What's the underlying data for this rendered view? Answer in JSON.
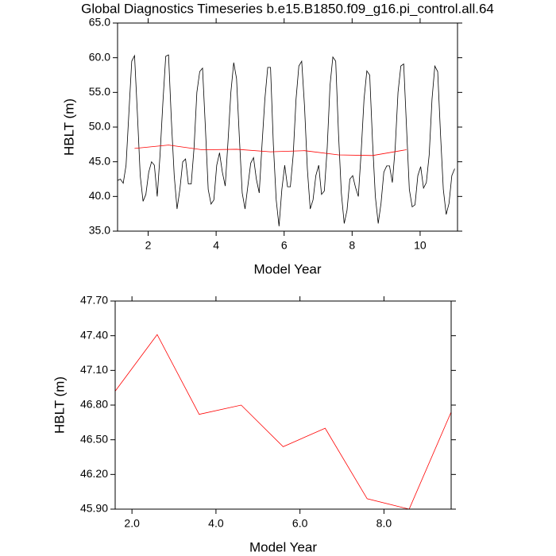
{
  "chart_data": [
    {
      "type": "line",
      "title": "Global Diagnostics Timeseries b.e15.B1850.f09_g16.pi_control.all.64",
      "x_label": "Model Year",
      "y_label": "HBLT (m)",
      "xlim": [
        1.1,
        11.1
      ],
      "xticks": [
        2,
        4,
        6,
        8,
        10
      ],
      "ylim": [
        35,
        65
      ],
      "yticks": [
        {
          "value": 35,
          "label": "35.0"
        },
        {
          "value": 40,
          "label": "40.0"
        },
        {
          "value": 45,
          "label": "45.0"
        },
        {
          "value": 50,
          "label": "50.0"
        },
        {
          "value": 55,
          "label": "55.0"
        },
        {
          "value": 60,
          "label": "60.0"
        },
        {
          "value": 65,
          "label": "65.0"
        }
      ],
      "series": [
        {
          "color": "#000000",
          "x": [
            1.1,
            1.183,
            1.267,
            1.35,
            1.433,
            1.517,
            1.6,
            1.683,
            1.767,
            1.85,
            1.933,
            2.017,
            2.1,
            2.183,
            2.267,
            2.35,
            2.433,
            2.517,
            2.6,
            2.683,
            2.767,
            2.85,
            2.933,
            3.017,
            3.1,
            3.183,
            3.267,
            3.35,
            3.433,
            3.517,
            3.6,
            3.683,
            3.767,
            3.85,
            3.933,
            4.017,
            4.1,
            4.183,
            4.267,
            4.35,
            4.433,
            4.517,
            4.6,
            4.683,
            4.767,
            4.85,
            4.933,
            5.017,
            5.1,
            5.183,
            5.267,
            5.35,
            5.433,
            5.517,
            5.6,
            5.683,
            5.767,
            5.85,
            5.933,
            6.017,
            6.1,
            6.183,
            6.267,
            6.35,
            6.433,
            6.517,
            6.6,
            6.683,
            6.767,
            6.85,
            6.933,
            7.017,
            7.1,
            7.183,
            7.267,
            7.35,
            7.433,
            7.517,
            7.6,
            7.683,
            7.767,
            7.85,
            7.933,
            8.017,
            8.1,
            8.183,
            8.267,
            8.35,
            8.433,
            8.517,
            8.6,
            8.683,
            8.767,
            8.85,
            8.933,
            9.017,
            9.1,
            9.183,
            9.267,
            9.35,
            9.433,
            9.517,
            9.6,
            9.683,
            9.767,
            9.85,
            9.933,
            10.017,
            10.1,
            10.183,
            10.267,
            10.35,
            10.433,
            10.517,
            10.6,
            10.683,
            10.767,
            10.85,
            10.933,
            11.017
          ],
          "values": [
            42.3,
            42.5,
            41.9,
            44.5,
            52.0,
            59.5,
            60.3,
            52.0,
            43.0,
            39.3,
            40.3,
            43.5,
            45.0,
            44.5,
            40.0,
            46.0,
            53.5,
            60.2,
            60.4,
            51.0,
            43.0,
            38.2,
            41.0,
            45.0,
            45.4,
            41.8,
            41.8,
            47.0,
            55.0,
            58.0,
            58.5,
            50.0,
            41.0,
            38.9,
            39.5,
            44.5,
            46.3,
            43.5,
            41.5,
            48.0,
            55.0,
            59.3,
            57.0,
            48.5,
            40.5,
            38.2,
            41.5,
            44.8,
            45.6,
            42.5,
            40.5,
            47.5,
            54.0,
            58.6,
            58.6,
            47.5,
            39.5,
            35.7,
            41.0,
            44.5,
            41.4,
            41.4,
            46.0,
            54.0,
            58.8,
            59.5,
            53.0,
            44.0,
            38.2,
            39.5,
            43.0,
            44.5,
            40.3,
            40.8,
            47.0,
            56.0,
            60.1,
            59.5,
            49.0,
            40.5,
            36.1,
            38.0,
            42.5,
            43.0,
            41.3,
            40.0,
            46.5,
            54.0,
            58.1,
            57.5,
            48.0,
            40.0,
            36.1,
            39.0,
            43.5,
            44.4,
            44.4,
            42.0,
            47.0,
            55.0,
            58.8,
            59.1,
            50.0,
            41.0,
            38.5,
            38.8,
            43.0,
            44.3,
            41.2,
            42.0,
            46.0,
            54.0,
            58.8,
            58.0,
            49.0,
            41.0,
            37.4,
            39.0,
            43.0,
            44.0
          ]
        },
        {
          "color": "#ff0000",
          "x": [
            1.6,
            2.6,
            3.6,
            4.6,
            5.6,
            6.6,
            7.6,
            8.6,
            9.6
          ],
          "values": [
            46.92,
            47.41,
            46.72,
            46.8,
            46.44,
            46.6,
            45.99,
            45.9,
            46.74
          ]
        }
      ]
    },
    {
      "type": "line",
      "x_label": "Model Year",
      "y_label": "HBLT (m)",
      "xlim": [
        1.6,
        9.6
      ],
      "xticks": [
        {
          "value": 2,
          "label": "2.0"
        },
        {
          "value": 4,
          "label": "4.0"
        },
        {
          "value": 6,
          "label": "6.0"
        },
        {
          "value": 8,
          "label": "8.0"
        }
      ],
      "ylim": [
        45.9,
        47.7
      ],
      "yticks": [
        {
          "value": 45.9,
          "label": "45.90"
        },
        {
          "value": 46.2,
          "label": "46.20"
        },
        {
          "value": 46.5,
          "label": "46.50"
        },
        {
          "value": 46.8,
          "label": "46.80"
        },
        {
          "value": 47.1,
          "label": "47.10"
        },
        {
          "value": 47.4,
          "label": "47.40"
        },
        {
          "value": 47.7,
          "label": "47.70"
        }
      ],
      "series": [
        {
          "color": "#ff0000",
          "x": [
            1.6,
            2.6,
            3.6,
            4.6,
            5.6,
            6.6,
            7.6,
            8.6,
            9.6
          ],
          "values": [
            46.92,
            47.41,
            46.72,
            46.8,
            46.44,
            46.6,
            45.99,
            45.9,
            46.74
          ]
        }
      ]
    }
  ]
}
